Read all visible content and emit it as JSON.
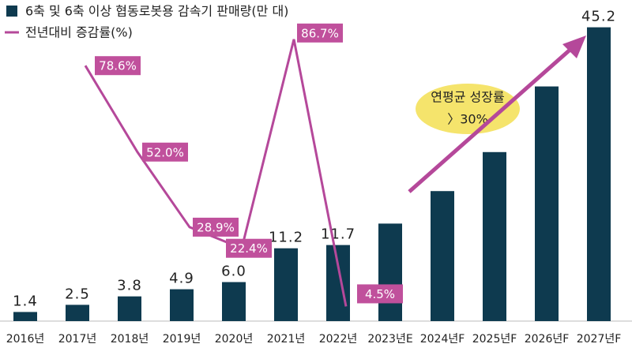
{
  "chart_data": {
    "type": "bar",
    "categories": [
      "2016년",
      "2017년",
      "2018년",
      "2019년",
      "2020년",
      "2021년",
      "2022년",
      "2023년E",
      "2024년F",
      "2025년F",
      "2026년F",
      "2027년F"
    ],
    "series": [
      {
        "name": "6축 및 6축 이상 협동로봇용 감속기 판매량(만 대)",
        "color": "#0e3a4f",
        "type": "bar",
        "values": [
          1.4,
          2.5,
          3.8,
          4.9,
          6.0,
          11.2,
          11.7,
          15.0,
          20.0,
          26.0,
          36.1,
          45.2
        ],
        "value_labels": [
          "1.4",
          "2.5",
          "3.8",
          "4.9",
          "6.0",
          "11.2",
          "11.7",
          null,
          null,
          null,
          null,
          "45.2"
        ]
      },
      {
        "name": "전년대비 증감률(%)",
        "color": "#b5489a",
        "type": "line",
        "axis": "y2",
        "values": [
          null,
          78.6,
          52.0,
          28.9,
          22.4,
          86.7,
          4.5,
          null,
          null,
          null,
          null,
          null
        ],
        "value_labels": [
          null,
          "78.6%",
          "52.0%",
          "28.9%",
          "22.4%",
          "86.7%",
          "4.5%",
          null,
          null,
          null,
          null,
          null
        ]
      }
    ],
    "ylim": [
      0,
      46
    ],
    "y2lim": [
      0,
      92
    ],
    "annotations": [
      "연평균 성장률",
      "〉30%"
    ]
  }
}
